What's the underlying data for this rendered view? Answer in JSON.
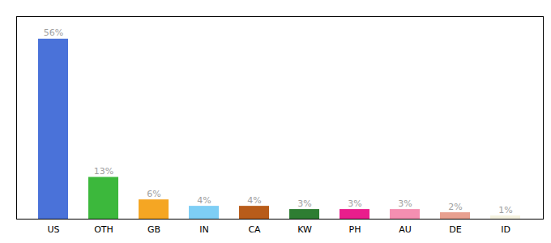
{
  "chart_data": {
    "type": "bar",
    "categories": [
      "US",
      "OTH",
      "GB",
      "IN",
      "CA",
      "KW",
      "PH",
      "AU",
      "DE",
      "ID"
    ],
    "values": [
      56,
      13,
      6,
      4,
      4,
      3,
      3,
      3,
      2,
      1
    ],
    "value_labels": [
      "56%",
      "13%",
      "6%",
      "4%",
      "4%",
      "3%",
      "3%",
      "3%",
      "2%",
      "1%"
    ],
    "colors": [
      "#4a72d9",
      "#3cb83c",
      "#f5a623",
      "#7ecef5",
      "#b85c1a",
      "#2e7d32",
      "#e91e8c",
      "#f48fb1",
      "#e8a090",
      "#f5f2e0"
    ],
    "ylim": [
      0,
      63
    ],
    "yticks": [],
    "data_labels": true,
    "tick_labels": "x",
    "grid": false
  }
}
